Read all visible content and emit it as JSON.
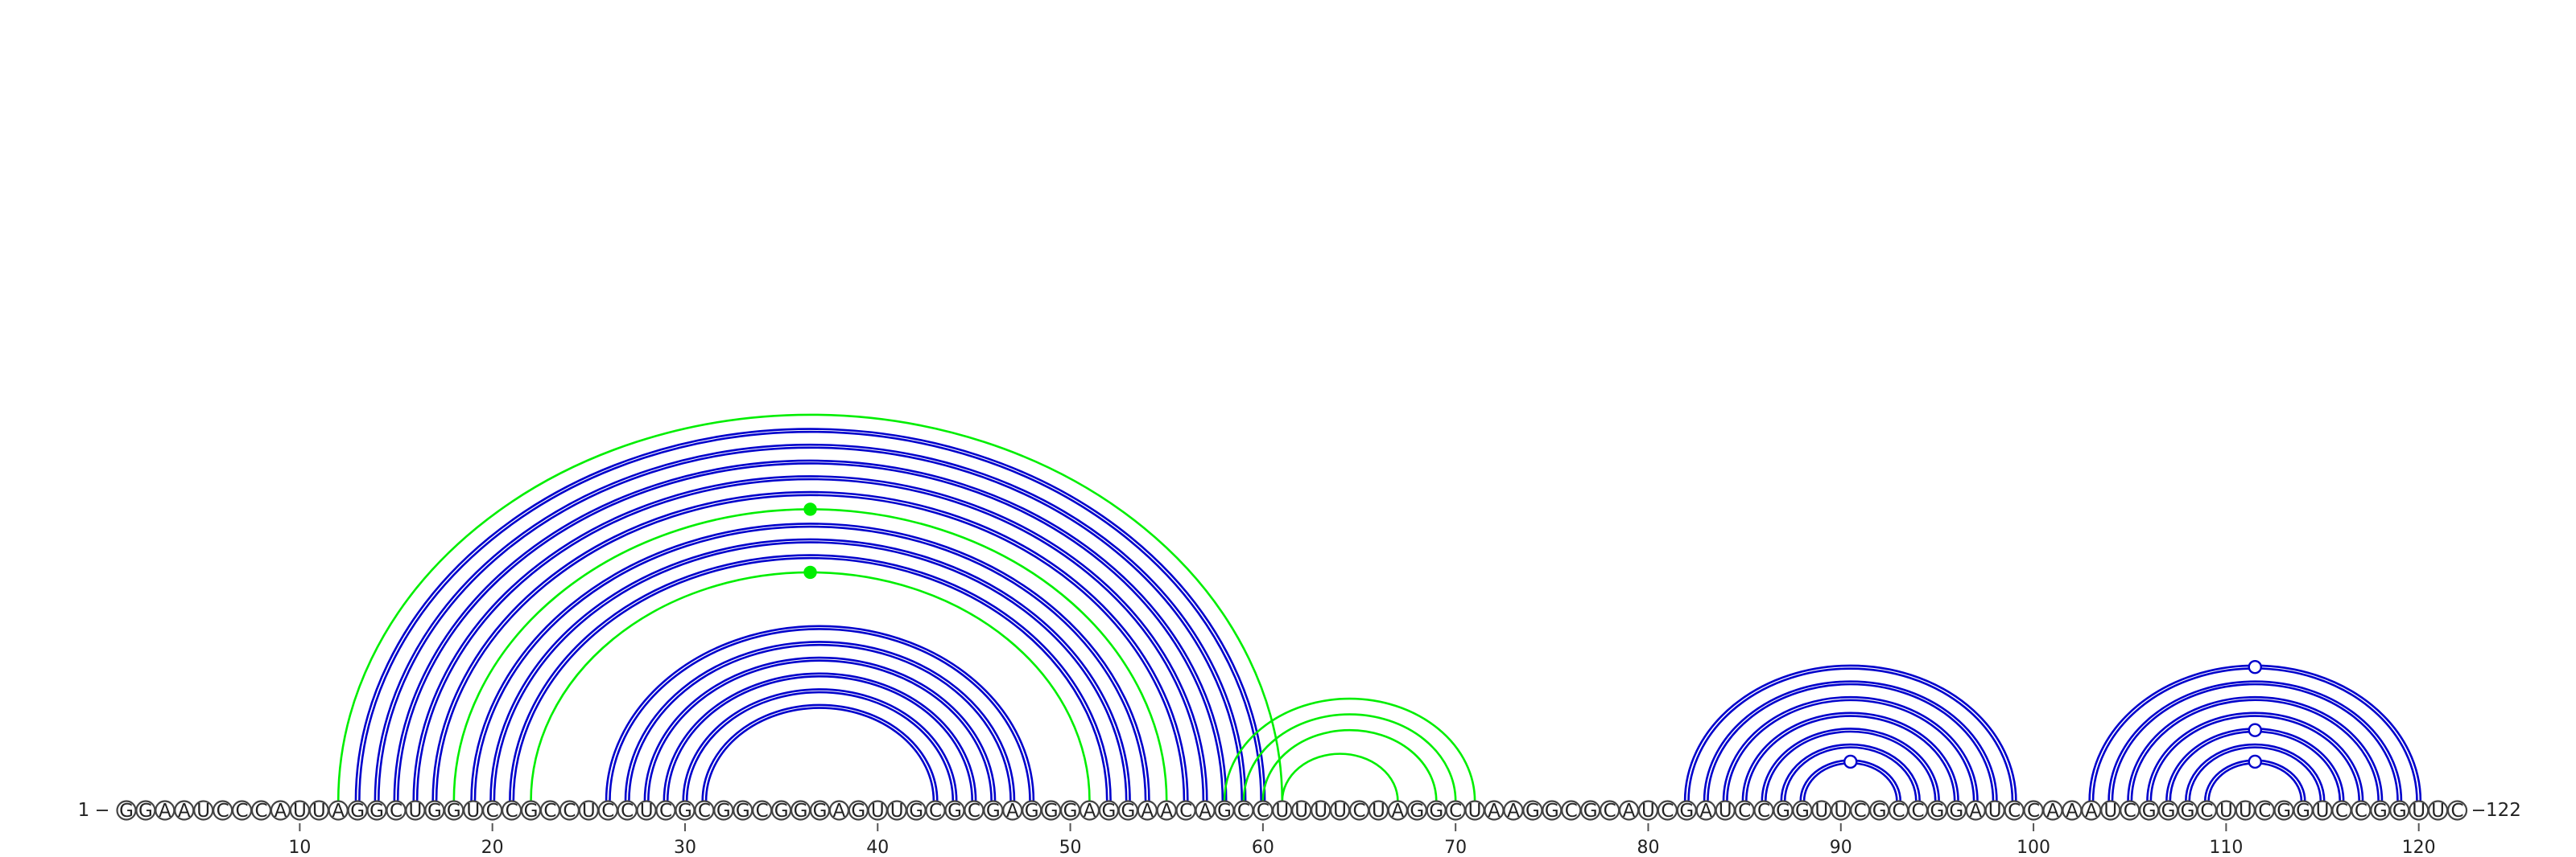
{
  "sequence": "GGAAUCCCAUUAGGCUGGUCCGCCUCCUCGCGGCGGGAGUUGCGCGAGGGAGGAACAGCCUUUUCUAGGCUAAGGCGCAUCGAUCCGGUUCGCCGGAUCCAAAUCGGGCUUCGGUCCGGUUC",
  "start_label": "1",
  "end_label": "122",
  "ticks": [
    10,
    20,
    30,
    40,
    50,
    60,
    70,
    80,
    90,
    100,
    110,
    120
  ],
  "colors": {
    "blue": "#0000cc",
    "green": "#00ee00"
  },
  "arc_groups": [
    {
      "color": "blue",
      "pairs": [
        [
          13,
          60
        ],
        [
          14,
          59
        ],
        [
          15,
          58
        ],
        [
          16,
          57
        ],
        [
          17,
          56
        ]
      ]
    },
    {
      "color": "blue",
      "pairs": [
        [
          19,
          54
        ],
        [
          20,
          53
        ],
        [
          21,
          52
        ]
      ]
    },
    {
      "color": "blue",
      "pairs": [
        [
          26,
          48
        ],
        [
          27,
          47
        ],
        [
          28,
          46
        ],
        [
          29,
          45
        ],
        [
          30,
          44
        ],
        [
          31,
          43
        ]
      ]
    },
    {
      "color": "green",
      "pairs": [
        [
          12,
          61
        ],
        [
          18,
          55
        ],
        [
          22,
          51
        ]
      ]
    },
    {
      "color": "green",
      "pairs": [
        [
          58,
          71
        ],
        [
          59,
          70
        ],
        [
          60,
          69
        ],
        [
          61,
          67
        ]
      ]
    },
    {
      "color": "blue",
      "pairs": [
        [
          82,
          99
        ],
        [
          83,
          98
        ],
        [
          84,
          97
        ],
        [
          85,
          96
        ],
        [
          86,
          95
        ],
        [
          87,
          94
        ],
        [
          88,
          93
        ]
      ]
    },
    {
      "color": "blue",
      "pairs": [
        [
          103,
          120
        ],
        [
          104,
          119
        ],
        [
          105,
          118
        ],
        [
          106,
          117
        ],
        [
          107,
          116
        ],
        [
          108,
          115
        ],
        [
          109,
          114
        ]
      ]
    }
  ],
  "markers": [
    {
      "color": "green",
      "filled": true,
      "position": 36.5,
      "on_pair": [
        18,
        55
      ]
    },
    {
      "color": "green",
      "filled": true,
      "position": 36.5,
      "on_pair": [
        22,
        51
      ]
    },
    {
      "color": "blue",
      "filled": false,
      "position": 90.5,
      "on_pair": [
        88,
        93
      ]
    },
    {
      "color": "blue",
      "filled": false,
      "position": 111.5,
      "on_pair": [
        103,
        120
      ]
    },
    {
      "color": "blue",
      "filled": false,
      "position": 111.5,
      "on_pair": [
        107,
        116
      ]
    },
    {
      "color": "blue",
      "filled": false,
      "position": 111.5,
      "on_pair": [
        109,
        114
      ]
    }
  ]
}
